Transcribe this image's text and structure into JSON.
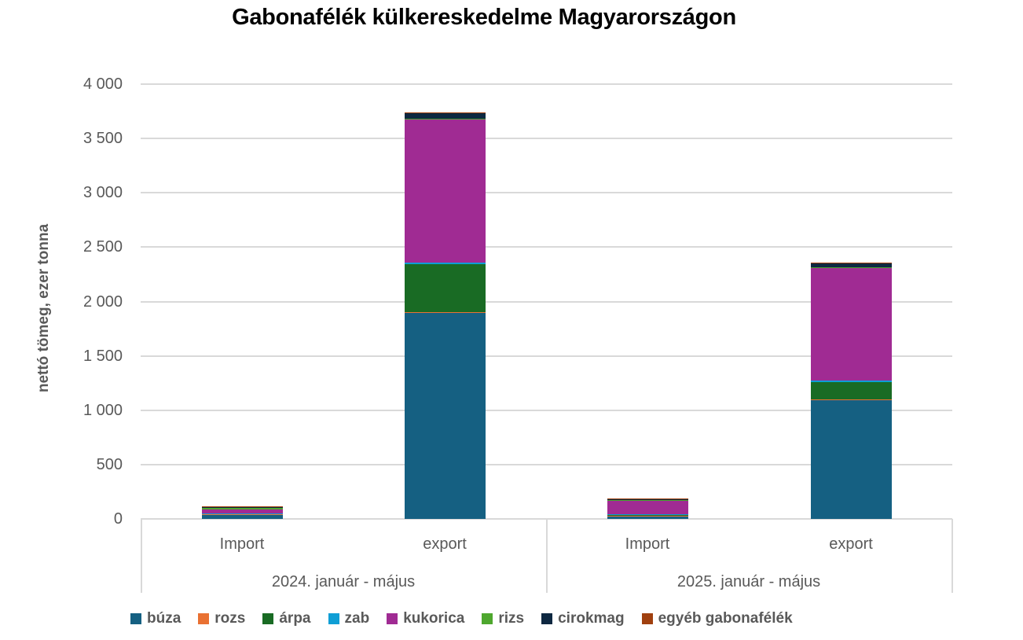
{
  "chart_data": {
    "type": "bar",
    "stacked": true,
    "title": "Gabonafélék külkereskedelme Magyarországon",
    "xlabel": "",
    "ylabel": "nettó tömeg, ezer tonna",
    "ylim": [
      0,
      4000
    ],
    "yticks": [
      0,
      500,
      1000,
      1500,
      2000,
      2500,
      3000,
      3500,
      4000
    ],
    "ytick_labels": [
      "0",
      "500",
      "1 000",
      "1 500",
      "2 000",
      "2 500",
      "3 000",
      "3 500",
      "4 000"
    ],
    "grid": true,
    "legend_position": "bottom",
    "groups": [
      {
        "label": "2024. január - május",
        "categories": [
          "Import",
          "export"
        ]
      },
      {
        "label": "2025. január - május",
        "categories": [
          "Import",
          "export"
        ]
      }
    ],
    "categories": [
      "2024 Import",
      "2024 export",
      "2025 Import",
      "2025 export"
    ],
    "series": [
      {
        "name": "búza",
        "color": "#156082",
        "values": [
          40,
          1900,
          30,
          1100
        ]
      },
      {
        "name": "rozs",
        "color": "#E97132",
        "values": [
          2,
          3,
          1,
          2
        ]
      },
      {
        "name": "árpa",
        "color": "#196B24",
        "values": [
          8,
          440,
          8,
          160
        ]
      },
      {
        "name": "zab",
        "color": "#0F9ED5",
        "values": [
          3,
          15,
          2,
          8
        ]
      },
      {
        "name": "kukorica",
        "color": "#A02B93",
        "values": [
          33,
          1318,
          125,
          1045
        ]
      },
      {
        "name": "rizs",
        "color": "#4EA72E",
        "values": [
          22,
          5,
          15,
          3
        ]
      },
      {
        "name": "cirokmag",
        "color": "#0E2841",
        "values": [
          2,
          50,
          2,
          30
        ]
      },
      {
        "name": "egyéb gabonafélék",
        "color": "#A0400F",
        "values": [
          7,
          9,
          5,
          12
        ]
      }
    ]
  }
}
